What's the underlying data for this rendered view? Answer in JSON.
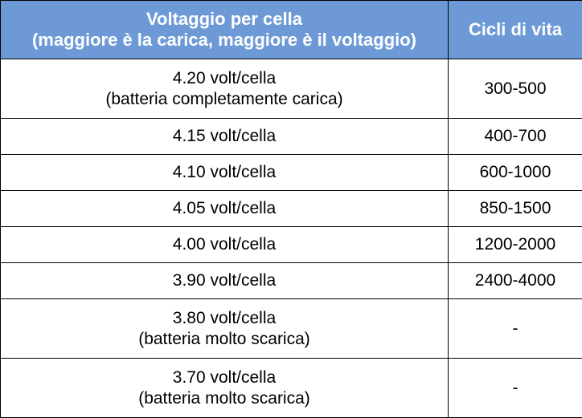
{
  "header": {
    "voltage_line1": "Voltaggio per cella",
    "voltage_line2": "(maggiore è la carica, maggiore è il voltaggio)",
    "cycles": "Cicli di vita"
  },
  "rows": [
    {
      "voltage": "4.20 volt/cella",
      "note": "(batteria completamente carica)",
      "cycles": "300-500"
    },
    {
      "voltage": "4.15 volt/cella",
      "note": "",
      "cycles": "400-700"
    },
    {
      "voltage": "4.10 volt/cella",
      "note": "",
      "cycles": "600-1000"
    },
    {
      "voltage": "4.05 volt/cella",
      "note": "",
      "cycles": "850-1500"
    },
    {
      "voltage": "4.00 volt/cella",
      "note": "",
      "cycles": "1200-2000"
    },
    {
      "voltage": "3.90 volt/cella",
      "note": "",
      "cycles": "2400-4000"
    },
    {
      "voltage": "3.80 volt/cella",
      "note": "(batteria molto scarica)",
      "cycles": "-"
    },
    {
      "voltage": "3.70 volt/cella",
      "note": "(batteria molto scarica)",
      "cycles": "-"
    }
  ],
  "colors": {
    "header_background": "#6d9ad6",
    "header_text": "#ffffff",
    "border": "#000000"
  }
}
